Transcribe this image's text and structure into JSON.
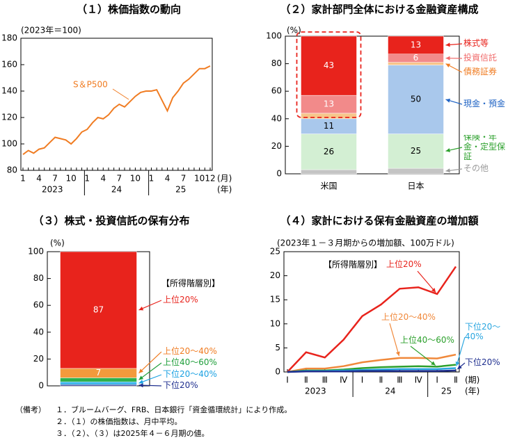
{
  "chart_data": [
    {
      "type": "line",
      "title": "（１）株価指数の動向",
      "ylabel": "(2023年＝100)",
      "categories": [
        "1",
        null,
        null,
        "4",
        null,
        null,
        "7",
        null,
        null,
        "10",
        null,
        null,
        "1",
        null,
        null,
        "4",
        null,
        null,
        "7",
        null,
        null,
        "10",
        null,
        null,
        "1",
        null,
        null,
        "4",
        null,
        null,
        "7",
        null,
        null,
        "10",
        null,
        "12"
      ],
      "x_group_labels": [
        "2023",
        null,
        null,
        null,
        null,
        null,
        null,
        null,
        null,
        null,
        null,
        null,
        "24",
        null,
        null,
        null,
        null,
        null,
        null,
        null,
        null,
        null,
        null,
        null,
        "25",
        null,
        null,
        null,
        null,
        null,
        null,
        null,
        null,
        null,
        null,
        null
      ],
      "x_unit": "(月)",
      "x_group_unit": "(年)",
      "series": [
        {
          "name": "S＆P500",
          "color": "#f07c22",
          "values": [
            92,
            95,
            93,
            96,
            97,
            101,
            105,
            104,
            103,
            100,
            104,
            109,
            111,
            116,
            120,
            119,
            122,
            127,
            130,
            128,
            132,
            136,
            139,
            140,
            140,
            141,
            133,
            125,
            135,
            140,
            146,
            149,
            153,
            157,
            157,
            159
          ]
        }
      ],
      "ylim": [
        80,
        180
      ],
      "yticks": [
        80,
        100,
        120,
        140,
        160,
        180
      ]
    },
    {
      "type": "bar",
      "stacked": true,
      "title": "（２）家計部門全体における金融資産構成",
      "ylabel": "(%)",
      "categories": [
        "米国",
        "日本"
      ],
      "series": [
        {
          "name": "その他",
          "color": "#9a9a9a",
          "fill": "#c4c4c4",
          "labeled": false,
          "label_color": "#000000",
          "values": [
            3,
            4
          ]
        },
        {
          "name": "保険・年金・定型保証",
          "color": "#2ca02c",
          "fill": "#d3efd3",
          "labeled": true,
          "label_color": "#000000",
          "values": [
            26,
            25
          ]
        },
        {
          "name": "現金・預金",
          "color": "#1f63c4",
          "fill": "#a9c8ec",
          "labeled": true,
          "label_color": "#000000",
          "values": [
            11,
            50
          ]
        },
        {
          "name": "債務証券",
          "color": "#f07c22",
          "fill": "#f7c58a",
          "labeled": false,
          "label_color": "#000000",
          "values": [
            4,
            2
          ]
        },
        {
          "name": "投資信託",
          "color": "#f06a6a",
          "fill": "#f28a8a",
          "labeled": true,
          "label_color": "#ffffff",
          "values": [
            13,
            6
          ]
        },
        {
          "name": "株式等",
          "color": "#e8231c",
          "fill": "#e8231c",
          "labeled": true,
          "label_color": "#ffffff",
          "values": [
            43,
            13
          ]
        }
      ],
      "ylim": [
        0,
        100
      ],
      "yticks": [
        0,
        20,
        40,
        60,
        80,
        100
      ]
    },
    {
      "type": "bar",
      "stacked": true,
      "title": "（３）株式・投資信託の保有分布",
      "ylabel": "(%)",
      "annotation": "【所得階層別】",
      "categories": [
        null
      ],
      "series": [
        {
          "name": "下位20%",
          "color": "#1f2f8f",
          "fill": "#203a9a",
          "labeled": false,
          "label_color": "#ffffff",
          "values": [
            1
          ]
        },
        {
          "name": "下位20～40%",
          "color": "#1ba1e2",
          "fill": "#37b4ea",
          "labeled": false,
          "label_color": "#ffffff",
          "values": [
            2
          ]
        },
        {
          "name": "上位40～60%",
          "color": "#1e9e3a",
          "fill": "#2db04b",
          "labeled": false,
          "label_color": "#ffffff",
          "values": [
            3
          ]
        },
        {
          "name": "上位20～40%",
          "color": "#f07c22",
          "fill": "#f39a3c",
          "labeled": true,
          "label_color": "#ffffff",
          "values": [
            7
          ]
        },
        {
          "name": "上位20%",
          "color": "#e8231c",
          "fill": "#e8231c",
          "labeled": true,
          "label_color": "#ffffff",
          "values": [
            87
          ]
        }
      ],
      "ylim": [
        0,
        100
      ],
      "yticks": [
        0,
        20,
        40,
        60,
        80,
        100
      ]
    },
    {
      "type": "line",
      "title": "（４）家計における保有金融資産の増加額",
      "ylabel": "(2023年１－３月期からの増加額、100万ドル)",
      "annotation": "【所得階層別】",
      "categories": [
        "Ⅰ",
        "Ⅱ",
        "Ⅲ",
        "Ⅳ",
        "Ⅰ",
        "Ⅱ",
        "Ⅲ",
        "Ⅳ",
        "Ⅰ",
        "Ⅱ"
      ],
      "x_group_labels": [
        "2023",
        null,
        null,
        null,
        "24",
        null,
        null,
        null,
        "25",
        null
      ],
      "x_unit": "(期)",
      "x_group_unit": "(年)",
      "series": [
        {
          "name": "上位20%",
          "color": "#e8231c",
          "values": [
            0,
            4.1,
            3.0,
            6.7,
            11.6,
            14.0,
            17.3,
            17.6,
            16.2,
            21.9
          ]
        },
        {
          "name": "上位20～40%",
          "color": "#f0883a",
          "values": [
            0,
            0.7,
            0.7,
            1.2,
            2.0,
            2.5,
            2.9,
            2.9,
            2.8,
            3.6
          ]
        },
        {
          "name": "上位40～60%",
          "color": "#2ca02c",
          "values": [
            0,
            0.3,
            0.3,
            0.5,
            0.8,
            1.0,
            1.1,
            1.2,
            1.1,
            1.5
          ]
        },
        {
          "name": "下位20～40%",
          "color": "#2aa6e0",
          "values": [
            0,
            0.2,
            0.2,
            0.3,
            0.4,
            0.5,
            0.6,
            0.6,
            0.6,
            0.8
          ]
        },
        {
          "name": "下位20%",
          "color": "#1f2f8f",
          "values": [
            0,
            0.1,
            0.1,
            0.1,
            0.2,
            0.2,
            0.2,
            0.2,
            0.2,
            0.3
          ]
        }
      ],
      "ylim": [
        0,
        25
      ],
      "yticks": [
        0,
        5,
        10,
        15,
        20,
        25
      ]
    }
  ],
  "notes": {
    "label": "（備考）",
    "items": [
      "１．ブルームバーグ、FRB、日本銀行「資金循環統計」により作成。",
      "２．（１）の株価指数は、月中平均。",
      "３．（２）、（３）は2025年４－６月期の値。"
    ]
  }
}
